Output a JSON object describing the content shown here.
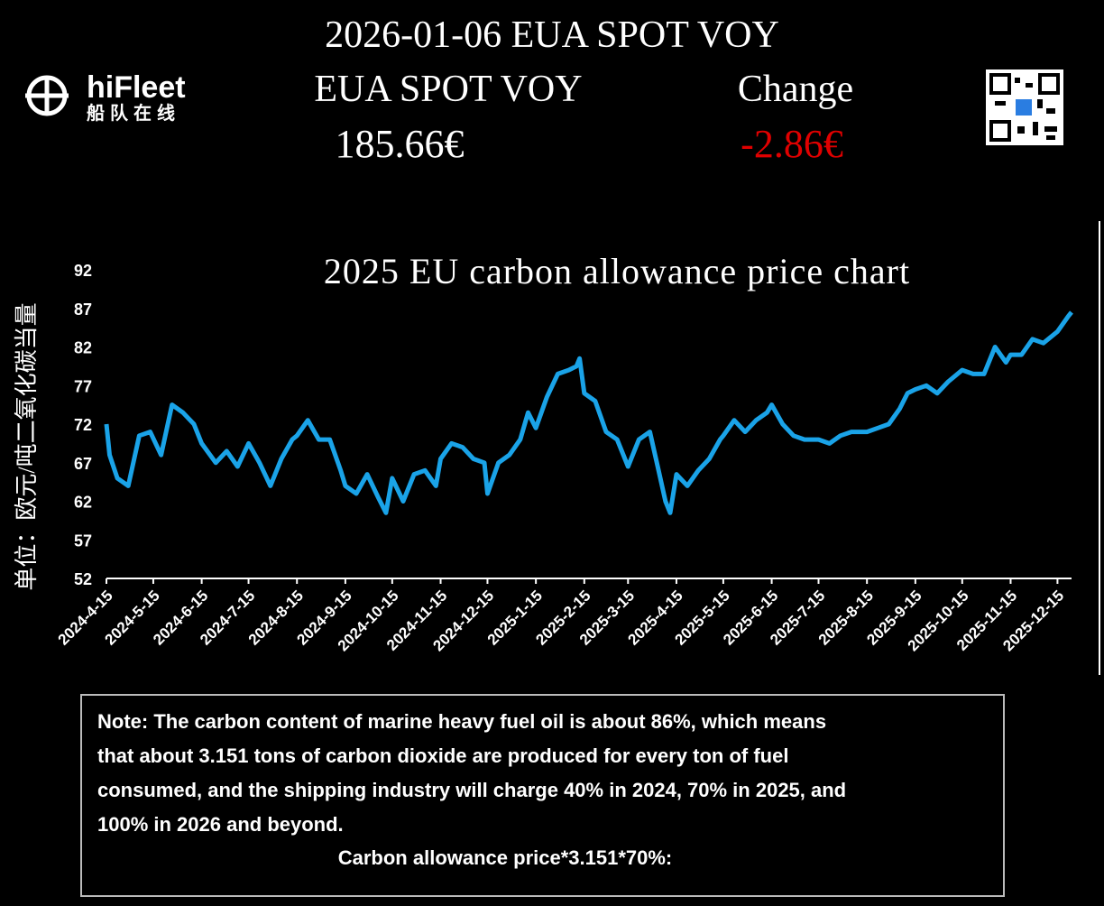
{
  "header": {
    "title": "2026-01-06 EUA SPOT VOY",
    "price_label": "EUA SPOT VOY",
    "change_label": "Change",
    "price": "185.66€",
    "change": "-2.86€"
  },
  "logo": {
    "name": "hiFleet",
    "subtitle": "船队在线"
  },
  "chart_data": {
    "type": "line",
    "title": "2025 EU carbon allowance price chart",
    "y_label": "单位：欧元/吨二氧化碳当量",
    "color": "#1aa3e8",
    "x": [
      "2024-4-15",
      "2024-4-17",
      "2024-4-22",
      "2024-4-29",
      "2024-5-6",
      "2024-5-13",
      "2024-5-20",
      "2024-5-27",
      "2024-6-3",
      "2024-6-10",
      "2024-6-15",
      "2024-6-24",
      "2024-7-1",
      "2024-7-8",
      "2024-7-15",
      "2024-7-22",
      "2024-7-29",
      "2024-8-5",
      "2024-8-12",
      "2024-8-15",
      "2024-8-22",
      "2024-8-29",
      "2024-9-5",
      "2024-9-12",
      "2024-9-15",
      "2024-9-22",
      "2024-9-29",
      "2024-10-6",
      "2024-10-11",
      "2024-10-15",
      "2024-10-22",
      "2024-10-29",
      "2024-11-5",
      "2024-11-12",
      "2024-11-15",
      "2024-11-22",
      "2024-11-29",
      "2024-12-6",
      "2024-12-13",
      "2024-12-15",
      "2024-12-22",
      "2024-12-29",
      "2025-1-5",
      "2025-1-10",
      "2025-1-15",
      "2025-1-22",
      "2025-1-29",
      "2025-2-5",
      "2025-2-10",
      "2025-2-12",
      "2025-2-15",
      "2025-2-22",
      "2025-3-1",
      "2025-3-8",
      "2025-3-15",
      "2025-3-22",
      "2025-3-29",
      "2025-4-3",
      "2025-4-8",
      "2025-4-11",
      "2025-4-15",
      "2025-4-22",
      "2025-4-29",
      "2025-5-6",
      "2025-5-13",
      "2025-5-15",
      "2025-5-22",
      "2025-5-29",
      "2025-6-5",
      "2025-6-12",
      "2025-6-15",
      "2025-6-22",
      "2025-6-29",
      "2025-7-6",
      "2025-7-15",
      "2025-7-22",
      "2025-7-29",
      "2025-8-5",
      "2025-8-15",
      "2025-8-22",
      "2025-8-29",
      "2025-9-5",
      "2025-9-10",
      "2025-9-15",
      "2025-9-22",
      "2025-9-29",
      "2025-10-6",
      "2025-10-15",
      "2025-10-22",
      "2025-10-29",
      "2025-11-5",
      "2025-11-12",
      "2025-11-15",
      "2025-11-22",
      "2025-11-29",
      "2025-12-6",
      "2025-12-15",
      "2025-12-22",
      "2025-12-24"
    ],
    "values": [
      72,
      68,
      65,
      64,
      70.5,
      71,
      68,
      74.5,
      73.5,
      72,
      69.5,
      67,
      68.5,
      66.5,
      69.5,
      67,
      64,
      67.5,
      70,
      70.5,
      72.5,
      70,
      70,
      66,
      64,
      63,
      65.5,
      62.5,
      60.5,
      65,
      62,
      65.5,
      66,
      64,
      67.5,
      69.5,
      69,
      67.5,
      67,
      63,
      67,
      68,
      70,
      73.5,
      71.5,
      75.5,
      78.5,
      79,
      79.5,
      80.5,
      76,
      75,
      71,
      70,
      66.5,
      70,
      71,
      66.5,
      62,
      60.5,
      65.5,
      64,
      66,
      67.5,
      70,
      70.5,
      72.5,
      71,
      72.5,
      73.5,
      74.5,
      72,
      70.5,
      70,
      70,
      69.5,
      70.5,
      71,
      71,
      71.5,
      72,
      74,
      76,
      76.5,
      77,
      76,
      77.5,
      79,
      78.5,
      78.5,
      82,
      80,
      81,
      81,
      83,
      82.5,
      84,
      86,
      86.5
    ],
    "xlim": [
      "2024-4-15",
      "2025-12-24"
    ],
    "ylim": [
      52,
      92
    ],
    "yticks": [
      52,
      57,
      62,
      67,
      72,
      77,
      82,
      87,
      92
    ],
    "xticks": [
      "2024-4-15",
      "2024-5-15",
      "2024-6-15",
      "2024-7-15",
      "2024-8-15",
      "2024-9-15",
      "2024-10-15",
      "2024-11-15",
      "2024-12-15",
      "2025-1-15",
      "2025-2-15",
      "2025-3-15",
      "2025-4-15",
      "2025-5-15",
      "2025-6-15",
      "2025-7-15",
      "2025-8-15",
      "2025-9-15",
      "2025-10-15",
      "2025-11-15",
      "2025-12-15"
    ]
  },
  "note": {
    "lines": [
      "Note: The carbon content of marine heavy fuel oil is about 86%, which means",
      "that about 3.151 tons of carbon dioxide are produced for every ton of fuel",
      "consumed, and the shipping industry will charge 40% in 2024, 70% in 2025, and",
      "100% in 2026 and beyond."
    ],
    "formula": "Carbon allowance price*3.151*70%:"
  }
}
